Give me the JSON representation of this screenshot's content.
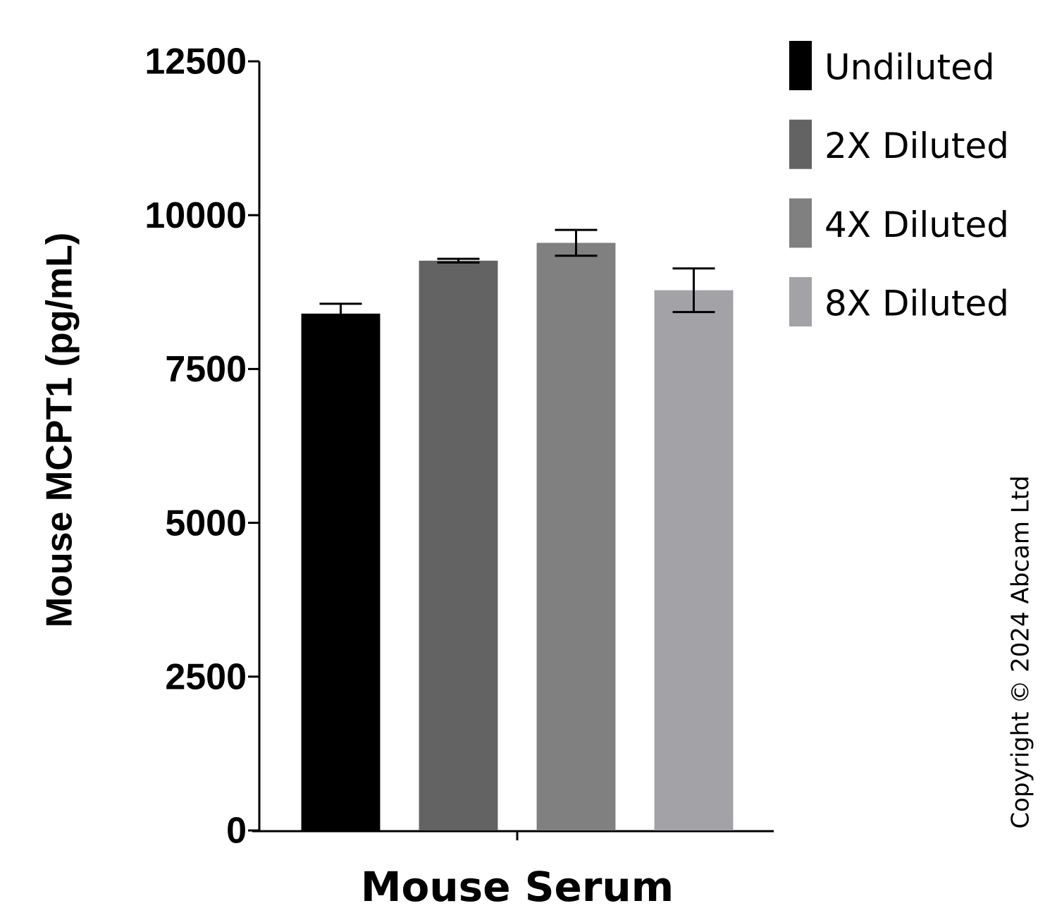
{
  "chart_data": {
    "type": "bar",
    "y_label": "Mouse MCPT1 (pg/mL)",
    "categories": [
      "Mouse Serum"
    ],
    "series": [
      {
        "name": "Undiluted",
        "color": "#000000",
        "values": [
          8400
        ],
        "errors": [
          160
        ]
      },
      {
        "name": "2X Diluted",
        "color": "#636363",
        "values": [
          9260
        ],
        "errors": [
          30
        ]
      },
      {
        "name": "4X Diluted",
        "color": "#808080",
        "values": [
          9550
        ],
        "errors": [
          210
        ]
      },
      {
        "name": "8X Diluted",
        "color": "#a3a2a7",
        "values": [
          8780
        ],
        "errors": [
          355
        ]
      }
    ],
    "ylim": [
      0,
      12500
    ],
    "yticks": [
      0,
      2500,
      5000,
      7500,
      10000,
      12500
    ],
    "error_bars": true,
    "legend": "top-right",
    "annotation": "Copyright © 2024 Abcam Ltd"
  }
}
